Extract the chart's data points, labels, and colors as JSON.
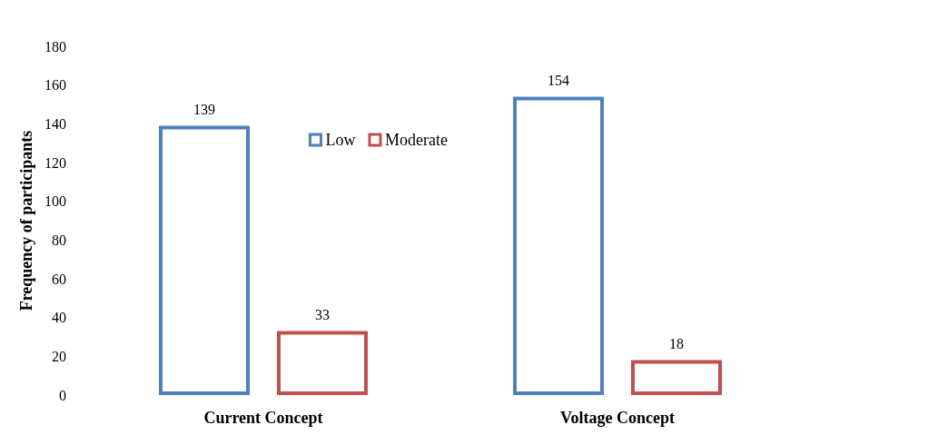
{
  "chart_data": {
    "type": "bar",
    "ylabel": "Frequency of participants",
    "categories": [
      "Current Concept",
      "Voltage Concept"
    ],
    "series": [
      {
        "name": "Low",
        "color": "#4f81bd",
        "values": [
          139,
          154
        ]
      },
      {
        "name": "Moderate",
        "color": "#c0504d",
        "values": [
          33,
          18
        ]
      }
    ],
    "ylim": [
      0,
      180
    ],
    "yticks": [
      0,
      20,
      40,
      60,
      80,
      100,
      120,
      140,
      160,
      180
    ],
    "grid": false,
    "legend": "top",
    "data_labels": true
  }
}
